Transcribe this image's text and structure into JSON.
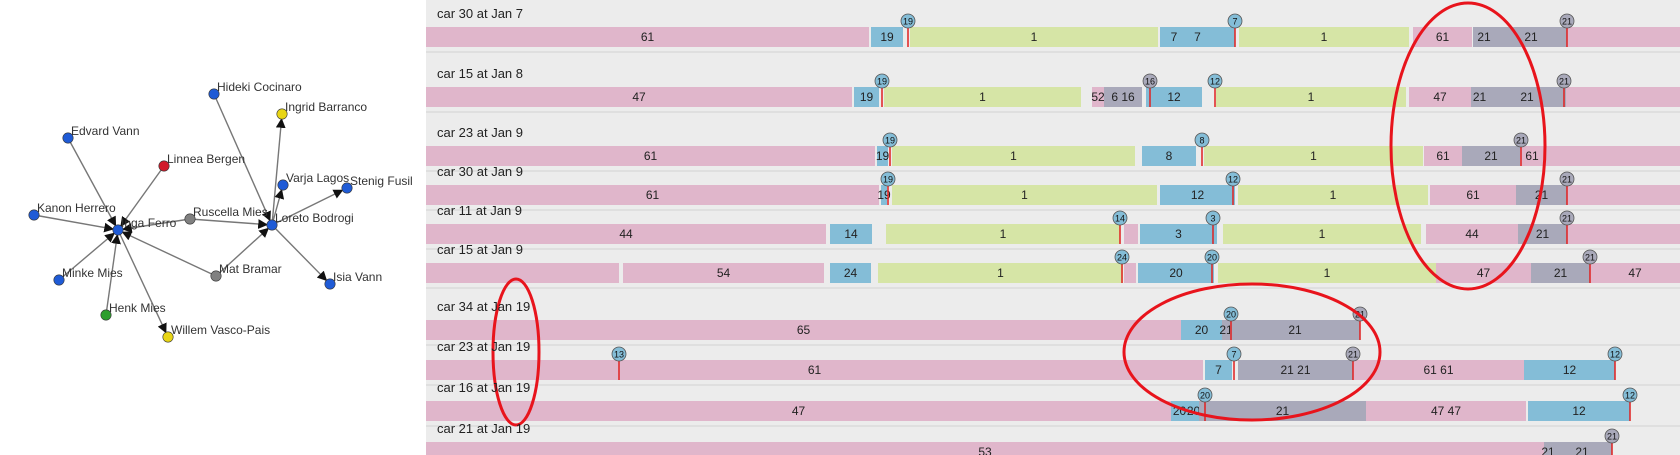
{
  "network": {
    "nodes": [
      {
        "id": "hideki",
        "label": "Hideki Cocinaro",
        "color": "#1f5bd6"
      },
      {
        "id": "ingrid",
        "label": "Ingrid Barranco",
        "color": "#e8d515"
      },
      {
        "id": "edvard",
        "label": "Edvard Vann",
        "color": "#1f5bd6"
      },
      {
        "id": "linnea",
        "label": "Linnea Bergen",
        "color": "#d11a2a"
      },
      {
        "id": "varja",
        "label": "Varja Lagos",
        "color": "#1f5bd6"
      },
      {
        "id": "stenig",
        "label": "Stenig Fusil",
        "color": "#1f5bd6"
      },
      {
        "id": "kanon",
        "label": "Kanon Herrero",
        "color": "#1f5bd6"
      },
      {
        "id": "inga",
        "label": "Inga Ferro",
        "color": "#1f5bd6"
      },
      {
        "id": "ruscella",
        "label": "Ruscella Mies",
        "color": "#808080"
      },
      {
        "id": "loreto",
        "label": "Loreto Bodrogi",
        "color": "#1f5bd6"
      },
      {
        "id": "minke",
        "label": "Minke Mies",
        "color": "#1f5bd6"
      },
      {
        "id": "mat",
        "label": "Mat Bramar",
        "color": "#808080"
      },
      {
        "id": "isia",
        "label": "Isia Vann",
        "color": "#1f5bd6"
      },
      {
        "id": "henk",
        "label": "Henk Mies",
        "color": "#2e9e2e"
      },
      {
        "id": "willem",
        "label": "Willem Vasco-Pais",
        "color": "#e8d515"
      }
    ],
    "edges": [
      [
        "edvard",
        "inga"
      ],
      [
        "kanon",
        "inga"
      ],
      [
        "minke",
        "inga"
      ],
      [
        "henk",
        "inga"
      ],
      [
        "inga",
        "willem"
      ],
      [
        "linnea",
        "inga"
      ],
      [
        "ruscella",
        "inga"
      ],
      [
        "mat",
        "inga"
      ],
      [
        "hideki",
        "loreto"
      ],
      [
        "loreto",
        "ingrid"
      ],
      [
        "loreto",
        "varja"
      ],
      [
        "loreto",
        "stenig"
      ],
      [
        "ruscella",
        "loreto"
      ],
      [
        "mat",
        "loreto"
      ],
      [
        "loreto",
        "isia"
      ]
    ]
  },
  "colors": {
    "pink": "#e0b6cb",
    "blue": "#84bdd7",
    "green": "#d6e5a6",
    "gray": "#a9a9ba",
    "marker_line": "#e02020",
    "annotation": "#e8141c"
  },
  "timeline": {
    "rows": [
      {
        "label": "car 30 at Jan 7",
        "segments": [
          {
            "s": 0,
            "e": 443,
            "c": "pink",
            "label": "61"
          },
          {
            "s": 445,
            "e": 477,
            "c": "blue",
            "label": "19"
          },
          {
            "s": 484,
            "e": 732,
            "c": "green",
            "label": "1"
          },
          {
            "s": 734,
            "e": 809,
            "c": "blue",
            "label": "7"
          },
          {
            "s": 736,
            "e": 760,
            "c": "blue",
            "label": "7"
          },
          {
            "s": 813,
            "e": 983,
            "c": "green",
            "label": "1"
          },
          {
            "s": 987,
            "e": 1046,
            "c": "pink",
            "label": "61"
          },
          {
            "s": 1047,
            "e": 1069,
            "c": "gray",
            "label": "21"
          },
          {
            "s": 1069,
            "e": 1141,
            "c": "gray",
            "label": "21"
          },
          {
            "s": 1141,
            "e": 1254,
            "c": "pink",
            "label": ""
          }
        ],
        "markers": [
          {
            "pos": 482,
            "label": "19",
            "c": "blue"
          },
          {
            "pos": 809,
            "label": "7",
            "c": "blue"
          },
          {
            "pos": 1141,
            "label": "21",
            "c": "gray"
          }
        ]
      },
      {
        "label": "car 15 at Jan 8",
        "segments": [
          {
            "s": 0,
            "e": 426,
            "c": "pink",
            "label": "47"
          },
          {
            "s": 428,
            "e": 453,
            "c": "blue",
            "label": "19"
          },
          {
            "s": 458,
            "e": 655,
            "c": "green",
            "label": "1"
          },
          {
            "s": 666,
            "e": 678,
            "c": "pink",
            "label": "52"
          },
          {
            "s": 678,
            "e": 716,
            "c": "gray",
            "label": "6   16"
          },
          {
            "s": 720,
            "e": 776,
            "c": "blue",
            "label": "12"
          },
          {
            "s": 790,
            "e": 980,
            "c": "green",
            "label": "1"
          },
          {
            "s": 983,
            "e": 1045,
            "c": "pink",
            "label": "47"
          },
          {
            "s": 1045,
            "e": 1062,
            "c": "gray",
            "label": "21"
          },
          {
            "s": 1062,
            "e": 1140,
            "c": "gray",
            "label": "21"
          },
          {
            "s": 1140,
            "e": 1254,
            "c": "pink",
            "label": ""
          }
        ],
        "markers": [
          {
            "pos": 456,
            "label": "19",
            "c": "blue"
          },
          {
            "pos": 724,
            "label": "16",
            "c": "gray"
          },
          {
            "pos": 789,
            "label": "12",
            "c": "blue"
          },
          {
            "pos": 1138,
            "label": "21",
            "c": "gray"
          }
        ]
      },
      {
        "label": "car 23 at Jan 9",
        "segments": [
          {
            "s": 0,
            "e": 449,
            "c": "pink",
            "label": "61"
          },
          {
            "s": 451,
            "e": 462,
            "c": "blue",
            "label": "19"
          },
          {
            "s": 466,
            "e": 709,
            "c": "green",
            "label": "1"
          },
          {
            "s": 716,
            "e": 770,
            "c": "blue",
            "label": "8"
          },
          {
            "s": 778,
            "e": 997,
            "c": "green",
            "label": "1"
          },
          {
            "s": 998,
            "e": 1036,
            "c": "pink",
            "label": "61"
          },
          {
            "s": 1036,
            "e": 1094,
            "c": "gray",
            "label": "21"
          },
          {
            "s": 1094,
            "e": 1118,
            "c": "pink",
            "label": "61"
          },
          {
            "s": 1118,
            "e": 1254,
            "c": "pink",
            "label": ""
          }
        ],
        "markers": [
          {
            "pos": 464,
            "label": "19",
            "c": "blue"
          },
          {
            "pos": 776,
            "label": "8",
            "c": "blue"
          },
          {
            "pos": 1095,
            "label": "21",
            "c": "gray"
          }
        ]
      },
      {
        "label": "car 30 at Jan 9",
        "segments": [
          {
            "s": 0,
            "e": 453,
            "c": "pink",
            "label": "61"
          },
          {
            "s": 455,
            "e": 461,
            "c": "blue",
            "label": "19"
          },
          {
            "s": 466,
            "e": 731,
            "c": "green",
            "label": "1"
          },
          {
            "s": 734,
            "e": 809,
            "c": "blue",
            "label": "12"
          },
          {
            "s": 812,
            "e": 1002,
            "c": "green",
            "label": "1"
          },
          {
            "s": 1004,
            "e": 1090,
            "c": "pink",
            "label": "61"
          },
          {
            "s": 1090,
            "e": 1141,
            "c": "gray",
            "label": "21"
          },
          {
            "s": 1141,
            "e": 1254,
            "c": "pink",
            "label": ""
          }
        ],
        "markers": [
          {
            "pos": 462,
            "label": "19",
            "c": "blue"
          },
          {
            "pos": 807,
            "label": "12",
            "c": "blue"
          },
          {
            "pos": 1141,
            "label": "21",
            "c": "gray"
          }
        ]
      },
      {
        "label": "car 11 at Jan 9",
        "segments": [
          {
            "s": 0,
            "e": 400,
            "c": "pink",
            "label": "44"
          },
          {
            "s": 404,
            "e": 446,
            "c": "blue",
            "label": "14"
          },
          {
            "s": 460,
            "e": 694,
            "c": "green",
            "label": "1"
          },
          {
            "s": 698,
            "e": 712,
            "c": "pink",
            "label": ""
          },
          {
            "s": 714,
            "e": 791,
            "c": "blue",
            "label": "3"
          },
          {
            "s": 797,
            "e": 995,
            "c": "green",
            "label": "1"
          },
          {
            "s": 1000,
            "e": 1092,
            "c": "pink",
            "label": "44"
          },
          {
            "s": 1092,
            "e": 1141,
            "c": "gray",
            "label": "21"
          },
          {
            "s": 1141,
            "e": 1254,
            "c": "pink",
            "label": ""
          }
        ],
        "markers": [
          {
            "pos": 694,
            "label": "14",
            "c": "blue"
          },
          {
            "pos": 787,
            "label": "3",
            "c": "blue"
          },
          {
            "pos": 1141,
            "label": "21",
            "c": "gray"
          }
        ]
      },
      {
        "label": "car 15 at Jan 9",
        "segments": [
          {
            "s": 0,
            "e": 193,
            "c": "pink",
            "label": ""
          },
          {
            "s": 197,
            "e": 398,
            "c": "pink",
            "label": "54"
          },
          {
            "s": 404,
            "e": 445,
            "c": "blue",
            "label": "24"
          },
          {
            "s": 452,
            "e": 697,
            "c": "green",
            "label": "1"
          },
          {
            "s": 698,
            "e": 710,
            "c": "pink",
            "label": ""
          },
          {
            "s": 712,
            "e": 788,
            "c": "blue",
            "label": "20"
          },
          {
            "s": 792,
            "e": 1010,
            "c": "green",
            "label": "1"
          },
          {
            "s": 1010,
            "e": 1105,
            "c": "pink",
            "label": "47"
          },
          {
            "s": 1105,
            "e": 1164,
            "c": "gray",
            "label": "21"
          },
          {
            "s": 1164,
            "e": 1254,
            "c": "pink",
            "label": "47"
          }
        ],
        "markers": [
          {
            "pos": 696,
            "label": "24",
            "c": "blue"
          },
          {
            "pos": 786,
            "label": "20",
            "c": "blue"
          },
          {
            "pos": 1164,
            "label": "21",
            "c": "gray"
          }
        ]
      },
      {
        "label": "car 34 at Jan 19",
        "segments": [
          {
            "s": 0,
            "e": 755,
            "c": "pink",
            "label": "65"
          },
          {
            "s": 755,
            "e": 796,
            "c": "blue",
            "label": "20"
          },
          {
            "s": 796,
            "e": 804,
            "c": "gray",
            "label": "21"
          },
          {
            "s": 804,
            "e": 934,
            "c": "gray",
            "label": "21"
          }
        ],
        "markers": [
          {
            "pos": 805,
            "label": "20",
            "c": "blue"
          },
          {
            "pos": 934,
            "label": "21",
            "c": "gray"
          }
        ]
      },
      {
        "label": "car 23 at Jan 19",
        "segments": [
          {
            "s": 0,
            "e": 777,
            "c": "pink",
            "label": "61"
          },
          {
            "s": 779,
            "e": 806,
            "c": "blue",
            "label": "7"
          },
          {
            "s": 812,
            "e": 927,
            "c": "gray",
            "label": "21   21"
          },
          {
            "s": 927,
            "e": 1098,
            "c": "pink",
            "label": "61   61"
          },
          {
            "s": 1098,
            "e": 1189,
            "c": "blue",
            "label": "12"
          }
        ],
        "markers": [
          {
            "pos": 193,
            "label": "13",
            "c": "blue"
          },
          {
            "pos": 808,
            "label": "7",
            "c": "blue"
          },
          {
            "pos": 927,
            "label": "21",
            "c": "gray"
          },
          {
            "pos": 1189,
            "label": "12",
            "c": "blue"
          }
        ]
      },
      {
        "label": "car 16 at Jan 19",
        "segments": [
          {
            "s": 0,
            "e": 745,
            "c": "pink",
            "label": "47"
          },
          {
            "s": 745,
            "e": 762,
            "c": "blue",
            "label": "20"
          },
          {
            "s": 762,
            "e": 773,
            "c": "blue",
            "label": "20"
          },
          {
            "s": 773,
            "e": 940,
            "c": "gray",
            "label": "21"
          },
          {
            "s": 940,
            "e": 1100,
            "c": "pink",
            "label": "47   47"
          },
          {
            "s": 1102,
            "e": 1204,
            "c": "blue",
            "label": "12"
          }
        ],
        "markers": [
          {
            "pos": 779,
            "label": "20",
            "c": "blue"
          },
          {
            "pos": 1204,
            "label": "12",
            "c": "blue"
          }
        ]
      },
      {
        "label": "car 21 at Jan 19",
        "segments": [
          {
            "s": 0,
            "e": 1118,
            "c": "pink",
            "label": "53"
          },
          {
            "s": 1118,
            "e": 1126,
            "c": "gray",
            "label": "21"
          },
          {
            "s": 1126,
            "e": 1186,
            "c": "gray",
            "label": "21"
          }
        ],
        "markers": [
          {
            "pos": 1186,
            "label": "21",
            "c": "gray"
          }
        ]
      }
    ]
  }
}
